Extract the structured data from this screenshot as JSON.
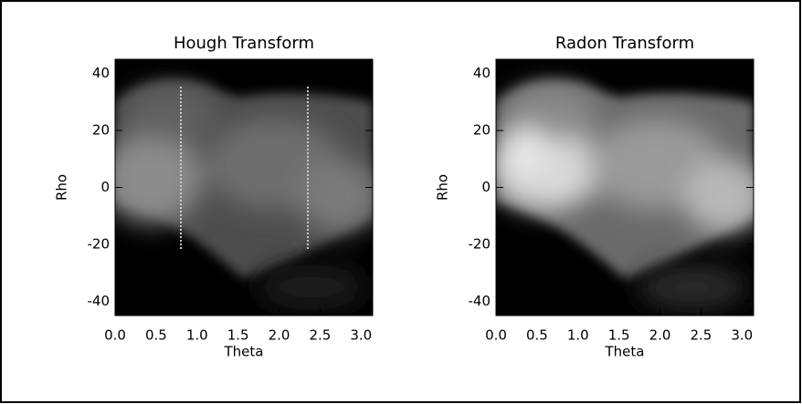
{
  "chart_data": [
    {
      "type": "image",
      "title": "Hough Transform",
      "xlabel": "Theta",
      "ylabel": "Rho",
      "xlim": [
        0,
        3.14159
      ],
      "ylim": [
        -45,
        45
      ],
      "xticks": [
        {
          "value": 0,
          "label": "0.0"
        },
        {
          "value": 0.5,
          "label": "0.5"
        },
        {
          "value": 1,
          "label": "1.0"
        },
        {
          "value": 1.5,
          "label": "1.5"
        },
        {
          "value": 2,
          "label": "2.0"
        },
        {
          "value": 2.5,
          "label": "2.5"
        },
        {
          "value": 3,
          "label": "3.0"
        }
      ],
      "yticks": [
        -40,
        -20,
        0,
        20,
        40
      ]
    },
    {
      "type": "image",
      "title": "Radon Transform",
      "xlabel": "Theta",
      "ylabel": "Rho",
      "xlim": [
        0,
        3.14159
      ],
      "ylim": [
        -45,
        45
      ],
      "xticks": [
        {
          "value": 0,
          "label": "0.0"
        },
        {
          "value": 0.5,
          "label": "0.5"
        },
        {
          "value": 1,
          "label": "1.0"
        },
        {
          "value": 1.5,
          "label": "1.5"
        },
        {
          "value": 2,
          "label": "2.0"
        },
        {
          "value": 2.5,
          "label": "2.5"
        },
        {
          "value": 3,
          "label": "3.0"
        }
      ],
      "yticks": [
        -40,
        -20,
        0,
        20,
        40
      ]
    }
  ]
}
